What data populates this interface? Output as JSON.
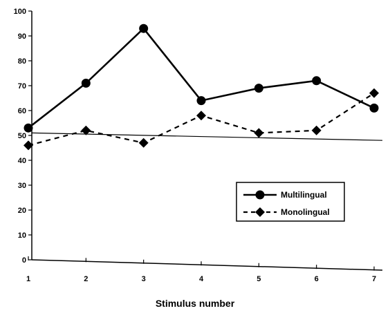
{
  "chart_data": {
    "type": "line",
    "title": "",
    "xlabel": "Stimulus number",
    "ylabel": "",
    "categories": [
      "1",
      "2",
      "3",
      "4",
      "5",
      "6",
      "7"
    ],
    "ylim": [
      0,
      100
    ],
    "yticks": [
      "0",
      "10",
      "20",
      "30",
      "40",
      "50",
      "60",
      "70",
      "80",
      "90",
      "100"
    ],
    "grid": false,
    "legend_position": "right",
    "series": [
      {
        "name": "Multilingual",
        "values": [
          53,
          71,
          93,
          64,
          69,
          72,
          61
        ],
        "marker": "circle",
        "line_style": "solid",
        "color": "#000000"
      },
      {
        "name": "Monolingual",
        "values": [
          46,
          52,
          47,
          58,
          51,
          52,
          67
        ],
        "marker": "diamond",
        "line_style": "dashed",
        "color": "#000000"
      }
    ],
    "annotations": [
      {
        "type": "reference-line",
        "style": "solid-thin",
        "values": [
          51,
          48
        ]
      }
    ]
  }
}
